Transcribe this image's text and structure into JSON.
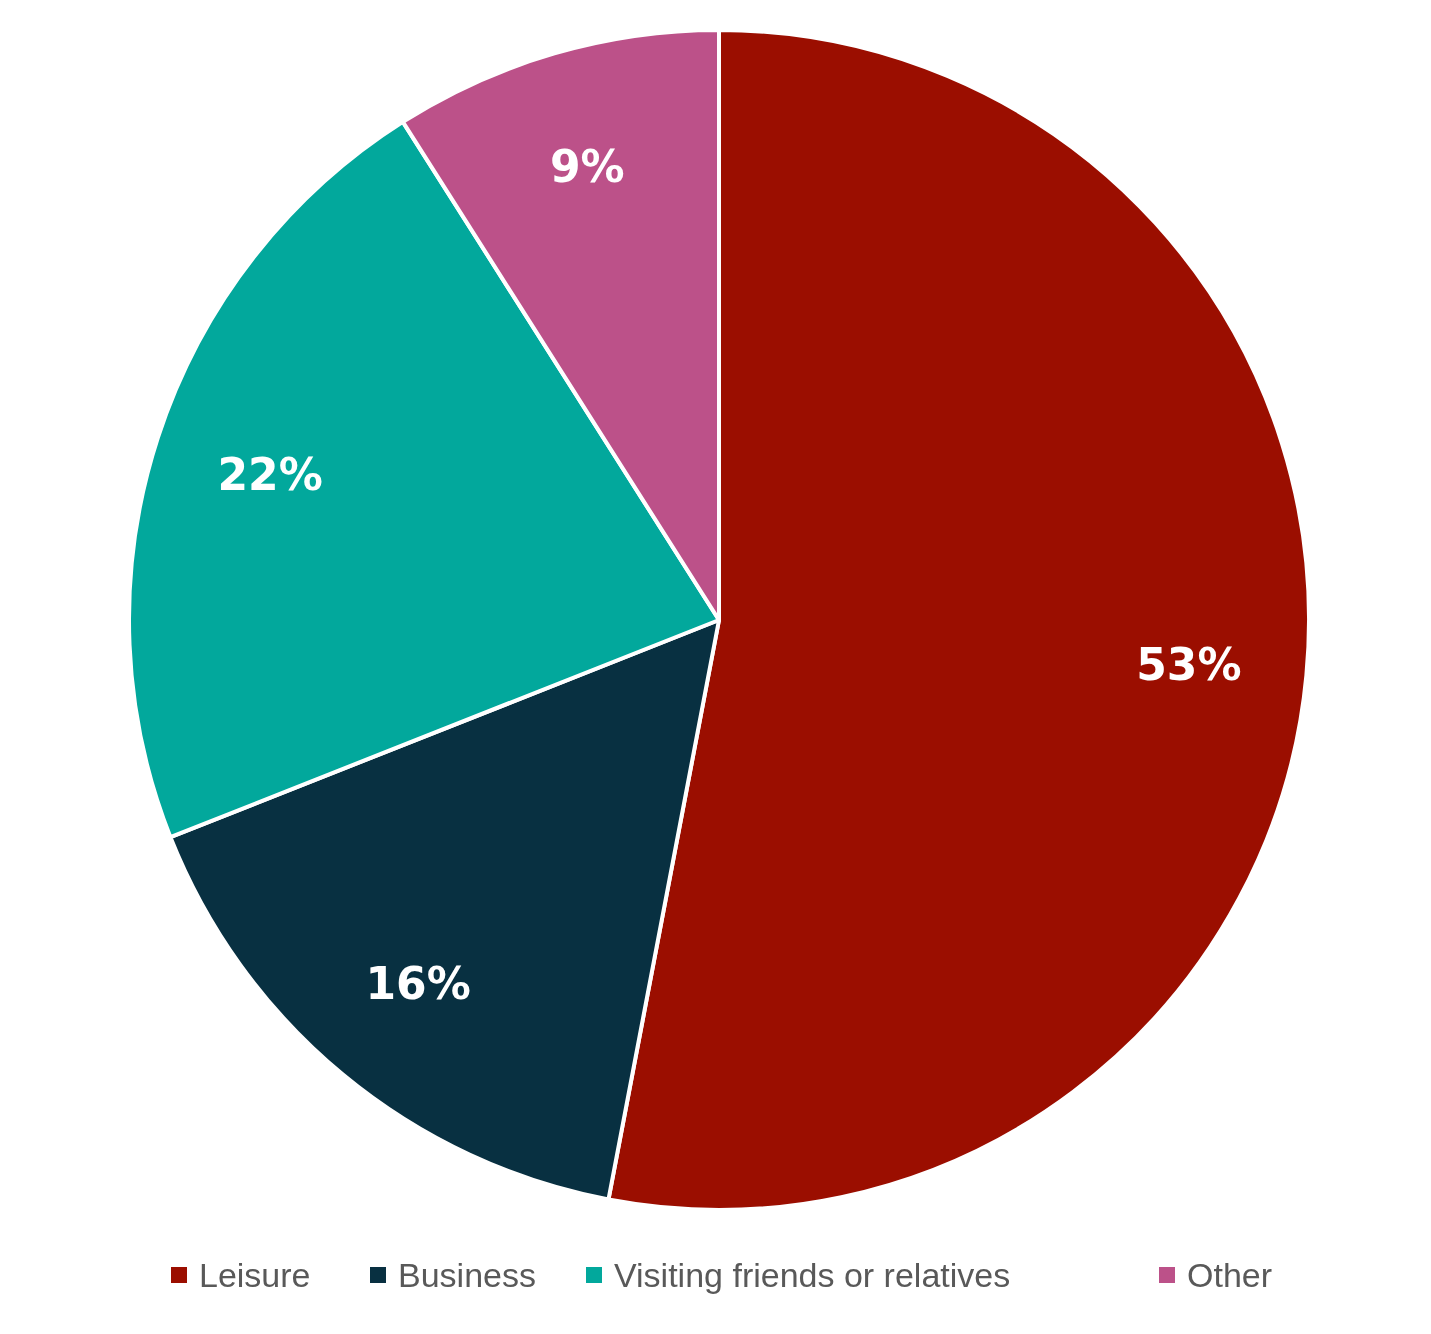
{
  "chart_data": {
    "type": "pie",
    "categories": [
      "Leisure",
      "Business",
      "Visiting friends or relatives",
      "Other"
    ],
    "values": [
      53,
      16,
      22,
      9
    ],
    "colors": [
      "#9b0e00",
      "#083041",
      "#02a89c",
      "#bc5189"
    ],
    "value_labels": [
      "53%",
      "16%",
      "22%",
      "9%"
    ],
    "legend": "bottom"
  }
}
